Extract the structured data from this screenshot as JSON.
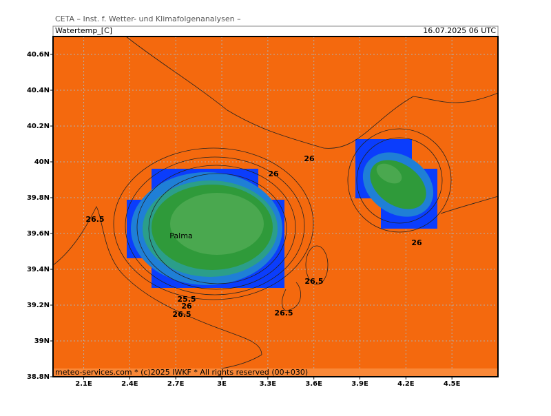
{
  "header": {
    "source": "CETA – Inst. f. Wetter- und Klimafolgenanalysen –",
    "variable": "Watertemp_[C]",
    "datetime": "16.07.2025 06 UTC"
  },
  "map": {
    "lon_range": [
      1.9,
      4.8
    ],
    "lat_range": [
      38.8,
      40.7
    ],
    "lon_ticks": [
      {
        "value": 2.1,
        "label": "2.1E"
      },
      {
        "value": 2.4,
        "label": "2.4E"
      },
      {
        "value": 2.7,
        "label": "2.7E"
      },
      {
        "value": 3,
        "label": "3E"
      },
      {
        "value": 3.3,
        "label": "3.3E"
      },
      {
        "value": 3.6,
        "label": "3.6E"
      },
      {
        "value": 3.9,
        "label": "3.9E"
      },
      {
        "value": 4.2,
        "label": "4.2E"
      },
      {
        "value": 4.5,
        "label": "4.5E"
      }
    ],
    "lat_ticks": [
      {
        "value": 38.8,
        "label": "38.8N"
      },
      {
        "value": 39,
        "label": "39N"
      },
      {
        "value": 39.2,
        "label": "39.2N"
      },
      {
        "value": 39.4,
        "label": "39.4N"
      },
      {
        "value": 39.6,
        "label": "39.6N"
      },
      {
        "value": 39.8,
        "label": "39.8N"
      },
      {
        "value": 40,
        "label": "40N"
      },
      {
        "value": 40.2,
        "label": "40.2N"
      },
      {
        "value": 40.4,
        "label": "40.4N"
      },
      {
        "value": 40.6,
        "label": "40.6N"
      }
    ],
    "place_labels": [
      "Palma"
    ],
    "contour_labels": [
      "26.5",
      "26",
      "26",
      "26",
      "26.5",
      "25.5",
      "26",
      "26.5",
      "26.5"
    ]
  },
  "footer": "meteo-services.com * (c)2025 IWKF * All rights reserved (00+030)"
}
